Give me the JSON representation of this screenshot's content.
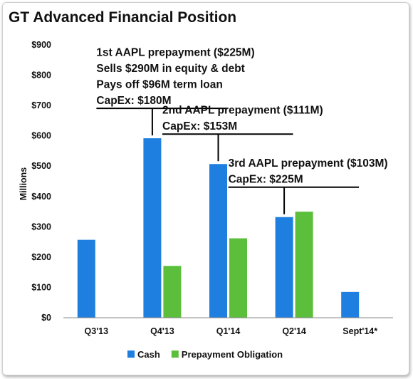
{
  "chart_data": {
    "type": "bar",
    "title": "GT Advanced Financial Position",
    "ylabel": "Millions",
    "xlabel": "",
    "ylim": [
      0,
      900
    ],
    "yticks": [
      "$0",
      "$100",
      "$200",
      "$300",
      "$400",
      "$500",
      "$600",
      "$700",
      "$800",
      "$900"
    ],
    "categories": [
      "Q3'13",
      "Q4'13",
      "Q1'14",
      "Q2'14",
      "Sept'14*"
    ],
    "series": [
      {
        "name": "Cash",
        "color": "#1f7fe0",
        "values": [
          257,
          592,
          507,
          332,
          85
        ]
      },
      {
        "name": "Prepayment Obligation",
        "color": "#5cbf3c",
        "values": [
          null,
          171,
          262,
          350,
          null
        ]
      }
    ],
    "legend_position": "bottom",
    "grid": false,
    "annotations": [
      {
        "category_index": 1,
        "lines": [
          "1st AAPL prepayment ($225M)",
          "Sells $290M in equity & debt",
          "Pays off $96M term loan",
          "CapEx: $180M"
        ]
      },
      {
        "category_index": 2,
        "lines": [
          "2nd AAPL prepayment ($111M)",
          "CapEx: $153M"
        ]
      },
      {
        "category_index": 3,
        "lines": [
          "3rd AAPL prepayment ($103M)",
          "CapEx: $225M"
        ]
      }
    ]
  }
}
